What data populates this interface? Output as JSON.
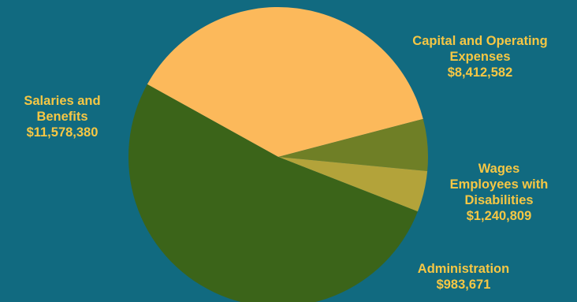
{
  "chart_data": {
    "type": "pie",
    "slices": [
      {
        "label_lines": [
          "Capital and Operating",
          "Expenses"
        ],
        "value_text": "$8,412,582",
        "value": 8412582,
        "color": "#fcb95b"
      },
      {
        "label_lines": [
          "Wages",
          "Employees with",
          "Disabilities"
        ],
        "value_text": "$1,240,809",
        "value": 1240809,
        "color": "#6f7f26"
      },
      {
        "label_lines": [
          "Administration"
        ],
        "value_text": "$983,671",
        "value": 983671,
        "color": "#b3a33a"
      },
      {
        "label_lines": [
          "Salaries and",
          "Benefits"
        ],
        "value_text": "$11,578,380",
        "value": 11578380,
        "color": "#3b6419"
      }
    ],
    "background": "#116a80",
    "label_color": "#f6c744"
  }
}
